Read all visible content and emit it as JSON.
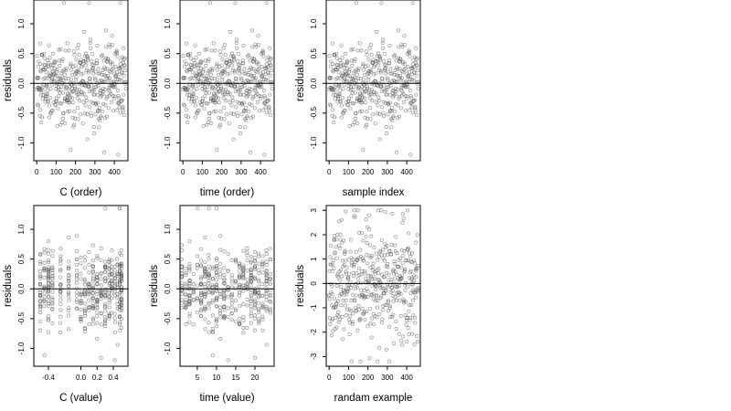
{
  "charts": [
    {
      "id": "c-order",
      "xlabel": "C (order)",
      "ylabel": "residuals",
      "x_source": "index",
      "xlim": [
        -15,
        470
      ],
      "ylim": [
        -1.3,
        1.4
      ],
      "x_ticks": [
        0,
        100,
        200,
        300,
        400
      ],
      "x_tick_labels": [
        "0",
        "100",
        "200",
        "300",
        "400"
      ],
      "y_ticks": [
        -1.0,
        -0.5,
        0.0,
        0.5,
        1.0
      ],
      "y_tick_labels": [
        "-1.0",
        "-0.5",
        "0.0",
        "0.5",
        "1.0"
      ]
    },
    {
      "id": "time-order",
      "xlabel": "time (order)",
      "ylabel": "residuals",
      "x_source": "index",
      "xlim": [
        -15,
        470
      ],
      "ylim": [
        -1.3,
        1.4
      ],
      "x_ticks": [
        0,
        100,
        200,
        300,
        400
      ],
      "x_tick_labels": [
        "0",
        "100",
        "200",
        "300",
        "400"
      ],
      "y_ticks": [
        -1.0,
        -0.5,
        0.0,
        0.5,
        1.0
      ],
      "y_tick_labels": [
        "-1.0",
        "-0.5",
        "0.0",
        "0.5",
        "1.0"
      ]
    },
    {
      "id": "sample-index",
      "xlabel": "sample index",
      "ylabel": "residuals",
      "x_source": "index",
      "xlim": [
        -15,
        470
      ],
      "ylim": [
        -1.3,
        1.4
      ],
      "x_ticks": [
        0,
        100,
        200,
        300,
        400
      ],
      "x_tick_labels": [
        "0",
        "100",
        "200",
        "300",
        "400"
      ],
      "y_ticks": [
        -1.0,
        -0.5,
        0.0,
        0.5,
        1.0
      ],
      "y_tick_labels": [
        "-1.0",
        "-0.5",
        "0.0",
        "0.5",
        "1.0"
      ]
    },
    {
      "id": "c-value",
      "xlabel": "C (value)",
      "ylabel": "residuals",
      "x_source": "c",
      "xlim": [
        -0.58,
        0.58
      ],
      "ylim": [
        -1.3,
        1.4
      ],
      "x_ticks": [
        -0.4,
        0.0,
        0.2,
        0.4
      ],
      "x_tick_labels": [
        "-0.4",
        "0.0",
        "0.2",
        "0.4"
      ],
      "y_ticks": [
        -1.0,
        -0.5,
        0.0,
        0.5,
        1.0
      ],
      "y_tick_labels": [
        "-1.0",
        "-0.5",
        "0.0",
        "0.5",
        "1.0"
      ]
    },
    {
      "id": "time-value",
      "xlabel": "time (value)",
      "ylabel": "residuals",
      "x_source": "t",
      "xlim": [
        0.5,
        25
      ],
      "ylim": [
        -1.3,
        1.4
      ],
      "x_ticks": [
        5,
        10,
        15,
        20
      ],
      "x_tick_labels": [
        "5",
        "10",
        "15",
        "20"
      ],
      "y_ticks": [
        -1.0,
        -0.5,
        0.0,
        0.5,
        1.0
      ],
      "y_tick_labels": [
        "-1.0",
        "-0.5",
        "0.0",
        "0.5",
        "1.0"
      ]
    },
    {
      "id": "random-example",
      "xlabel": "randam example",
      "ylabel": "residuals",
      "x_source": "index",
      "y_source": "random",
      "xlim": [
        -15,
        470
      ],
      "ylim": [
        -3.4,
        3.2
      ],
      "x_ticks": [
        0,
        100,
        200,
        300,
        400
      ],
      "x_tick_labels": [
        "0",
        "100",
        "200",
        "300",
        "400"
      ],
      "y_ticks": [
        -3,
        -2,
        -1,
        0,
        1,
        2,
        3
      ],
      "y_tick_labels": [
        "-3",
        "-2",
        "-1",
        "0",
        "1",
        "2",
        "3"
      ]
    }
  ],
  "chart_data": [
    {
      "type": "scatter",
      "xlabel": "C (order)",
      "ylabel": "residuals",
      "xlim": [
        -15,
        470
      ],
      "ylim": [
        -1.3,
        1.4
      ],
      "reference_line_y": 0,
      "points": [
        [
          5,
          0.3
        ],
        [
          20,
          0.5
        ],
        [
          35,
          -0.75
        ],
        [
          50,
          0.1
        ],
        [
          70,
          0.45
        ],
        [
          85,
          -0.2
        ],
        [
          100,
          -0.95
        ],
        [
          120,
          0.35
        ],
        [
          140,
          -0.1
        ],
        [
          160,
          0.2
        ],
        [
          180,
          -0.3
        ],
        [
          200,
          0.05
        ],
        [
          210,
          -1.1
        ],
        [
          230,
          -0.4
        ],
        [
          250,
          0.65
        ],
        [
          270,
          0.15
        ],
        [
          290,
          -0.55
        ],
        [
          310,
          0.4
        ],
        [
          330,
          -0.15
        ],
        [
          350,
          0.2
        ],
        [
          370,
          -0.8
        ],
        [
          390,
          0.3
        ],
        [
          410,
          -1.2
        ],
        [
          425,
          1.35
        ],
        [
          440,
          0.7
        ],
        [
          455,
          -0.6
        ]
      ]
    },
    {
      "type": "scatter",
      "xlabel": "time (order)",
      "ylabel": "residuals",
      "xlim": [
        -15,
        470
      ],
      "ylim": [
        -1.3,
        1.4
      ],
      "reference_line_y": 0,
      "points": [
        [
          10,
          -0.3
        ],
        [
          25,
          0.2
        ],
        [
          40,
          -1.1
        ],
        [
          60,
          -0.4
        ],
        [
          80,
          0.35
        ],
        [
          100,
          0.1
        ],
        [
          115,
          -0.5
        ],
        [
          130,
          1.35
        ],
        [
          150,
          0.5
        ],
        [
          170,
          -0.25
        ],
        [
          190,
          0.6
        ],
        [
          210,
          -0.7
        ],
        [
          230,
          0.3
        ],
        [
          250,
          -0.9
        ],
        [
          270,
          0.45
        ],
        [
          290,
          -0.2
        ],
        [
          310,
          0.55
        ],
        [
          330,
          -0.6
        ],
        [
          350,
          0.15
        ],
        [
          370,
          0.4
        ],
        [
          390,
          -0.3
        ],
        [
          410,
          0.2
        ],
        [
          430,
          -0.45
        ],
        [
          450,
          0.3
        ]
      ]
    },
    {
      "type": "scatter",
      "xlabel": "sample index",
      "ylabel": "residuals",
      "xlim": [
        -15,
        470
      ],
      "ylim": [
        -1.3,
        1.4
      ],
      "reference_line_y": 0,
      "points": [
        [
          5,
          0.4
        ],
        [
          25,
          -0.2
        ],
        [
          45,
          0.1
        ],
        [
          65,
          -0.5
        ],
        [
          85,
          0.25
        ],
        [
          105,
          -0.3
        ],
        [
          125,
          -1.2
        ],
        [
          145,
          0.2
        ],
        [
          165,
          -0.4
        ],
        [
          185,
          0.5
        ],
        [
          205,
          -0.6
        ],
        [
          225,
          0.3
        ],
        [
          245,
          -0.2
        ],
        [
          265,
          1.35
        ],
        [
          285,
          0.6
        ],
        [
          305,
          -0.8
        ],
        [
          325,
          0.35
        ],
        [
          345,
          -0.5
        ],
        [
          365,
          0.4
        ],
        [
          385,
          -0.1
        ],
        [
          405,
          0.25
        ],
        [
          425,
          -0.9
        ],
        [
          445,
          0.15
        ],
        [
          460,
          -0.3
        ]
      ]
    },
    {
      "type": "scatter",
      "xlabel": "C (value)",
      "ylabel": "residuals",
      "xlim": [
        -0.58,
        0.58
      ],
      "ylim": [
        -1.3,
        1.4
      ],
      "reference_line_y": 0,
      "points": [
        [
          -0.5,
          0.5
        ],
        [
          -0.5,
          -0.3
        ],
        [
          -0.45,
          -0.75
        ],
        [
          -0.4,
          0.4
        ],
        [
          -0.35,
          -0.9
        ],
        [
          -0.25,
          0.3
        ],
        [
          -0.15,
          -0.4
        ],
        [
          -0.05,
          0.55
        ],
        [
          0.0,
          -1.1
        ],
        [
          0.05,
          0.1
        ],
        [
          0.15,
          -0.3
        ],
        [
          0.2,
          0.45
        ],
        [
          0.3,
          -0.6
        ],
        [
          0.38,
          0.3
        ],
        [
          0.42,
          -1.2
        ],
        [
          0.48,
          1.35
        ],
        [
          0.5,
          0.7
        ],
        [
          0.5,
          -0.6
        ]
      ]
    },
    {
      "type": "scatter",
      "xlabel": "time (value)",
      "ylabel": "residuals",
      "xlim": [
        0.5,
        25
      ],
      "ylim": [
        -1.3,
        1.4
      ],
      "reference_line_y": 0,
      "points": [
        [
          1,
          0.2
        ],
        [
          2,
          -0.3
        ],
        [
          3,
          -1.1
        ],
        [
          4,
          0.4
        ],
        [
          5,
          -0.2
        ],
        [
          6,
          0.55
        ],
        [
          7,
          -0.6
        ],
        [
          8,
          0.3
        ],
        [
          9,
          -0.5
        ],
        [
          10,
          1.35
        ],
        [
          11,
          0.5
        ],
        [
          12,
          -0.8
        ],
        [
          13,
          0.3
        ],
        [
          14,
          -0.4
        ],
        [
          15,
          0.6
        ],
        [
          16,
          -0.1
        ],
        [
          17,
          0.45
        ],
        [
          18,
          -0.7
        ],
        [
          19,
          0.2
        ],
        [
          20,
          -0.3
        ],
        [
          21,
          0.5
        ],
        [
          22,
          -0.2
        ],
        [
          23,
          0.35
        ],
        [
          24,
          -0.9
        ]
      ]
    },
    {
      "type": "scatter",
      "xlabel": "randam example",
      "ylabel": "residuals",
      "xlim": [
        -15,
        470
      ],
      "ylim": [
        -3.4,
        3.2
      ],
      "reference_line_y": 0,
      "points": [
        [
          10,
          2.2
        ],
        [
          30,
          -1.5
        ],
        [
          50,
          0.8
        ],
        [
          70,
          -2.4
        ],
        [
          90,
          2.9
        ],
        [
          110,
          0.3
        ],
        [
          130,
          -1.0
        ],
        [
          150,
          1.5
        ],
        [
          170,
          -2.0
        ],
        [
          190,
          0.6
        ],
        [
          210,
          2.3
        ],
        [
          230,
          -0.8
        ],
        [
          250,
          -3.2
        ],
        [
          270,
          1.1
        ],
        [
          290,
          -1.6
        ],
        [
          310,
          0.4
        ],
        [
          330,
          2.0
        ],
        [
          350,
          -0.5
        ],
        [
          370,
          1.2
        ],
        [
          390,
          2.8
        ],
        [
          410,
          -2.6
        ],
        [
          430,
          0.9
        ],
        [
          450,
          -1.3
        ],
        [
          460,
          1.6
        ]
      ]
    }
  ]
}
